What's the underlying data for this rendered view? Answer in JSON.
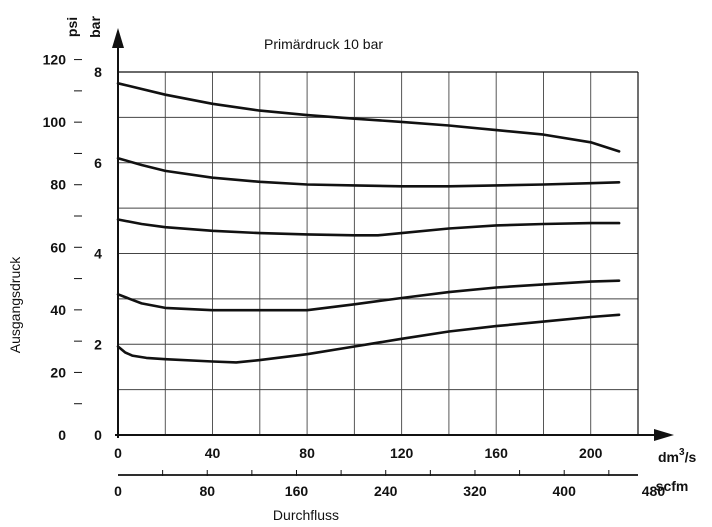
{
  "chart_data": {
    "type": "line",
    "title": "Primärdruck 10 bar",
    "ylabel": "Ausgangsdruck",
    "xlabel": "Durchfluss",
    "x_unit": "dm3/s",
    "x_unit_base": "dm",
    "x_unit_sup": "3",
    "x_unit_tail": "/s",
    "x2_unit": "scfm",
    "y_unit_bar": "bar",
    "y_unit_psi": "psi",
    "xlim": [
      0,
      220
    ],
    "ylim": [
      0,
      8
    ],
    "grid": true,
    "x_ticks": [
      "0",
      "40",
      "80",
      "120",
      "160",
      "200"
    ],
    "x2_ticks": [
      "0",
      "80",
      "160",
      "240",
      "320",
      "400",
      "480"
    ],
    "y_bar_ticks": [
      "0",
      "2",
      "4",
      "6",
      "8"
    ],
    "y_psi_ticks": [
      "0",
      "20",
      "40",
      "60",
      "80",
      "100",
      "120"
    ],
    "series": [
      {
        "x": [
          0,
          20,
          40,
          60,
          80,
          100,
          120,
          140,
          160,
          180,
          200,
          212
        ],
        "y": [
          7.75,
          7.5,
          7.3,
          7.15,
          7.05,
          6.97,
          6.9,
          6.82,
          6.72,
          6.62,
          6.45,
          6.25
        ]
      },
      {
        "x": [
          0,
          10,
          20,
          40,
          60,
          80,
          100,
          120,
          140,
          160,
          180,
          200,
          212
        ],
        "y": [
          6.1,
          5.95,
          5.82,
          5.67,
          5.58,
          5.52,
          5.5,
          5.48,
          5.48,
          5.5,
          5.52,
          5.55,
          5.57
        ]
      },
      {
        "x": [
          0,
          10,
          20,
          40,
          60,
          80,
          100,
          110,
          120,
          140,
          160,
          180,
          200,
          212
        ],
        "y": [
          4.75,
          4.65,
          4.58,
          4.5,
          4.45,
          4.42,
          4.4,
          4.4,
          4.45,
          4.55,
          4.62,
          4.65,
          4.67,
          4.67
        ]
      },
      {
        "x": [
          0,
          5,
          10,
          20,
          40,
          60,
          80,
          100,
          120,
          140,
          160,
          180,
          200,
          212
        ],
        "y": [
          3.1,
          3.0,
          2.9,
          2.8,
          2.75,
          2.75,
          2.75,
          2.88,
          3.02,
          3.15,
          3.25,
          3.32,
          3.38,
          3.4
        ]
      },
      {
        "x": [
          0,
          3,
          6,
          12,
          20,
          40,
          50,
          60,
          80,
          100,
          120,
          140,
          160,
          180,
          200,
          212
        ],
        "y": [
          1.95,
          1.82,
          1.75,
          1.7,
          1.67,
          1.62,
          1.6,
          1.65,
          1.78,
          1.95,
          2.12,
          2.28,
          2.4,
          2.5,
          2.6,
          2.65
        ]
      }
    ]
  }
}
